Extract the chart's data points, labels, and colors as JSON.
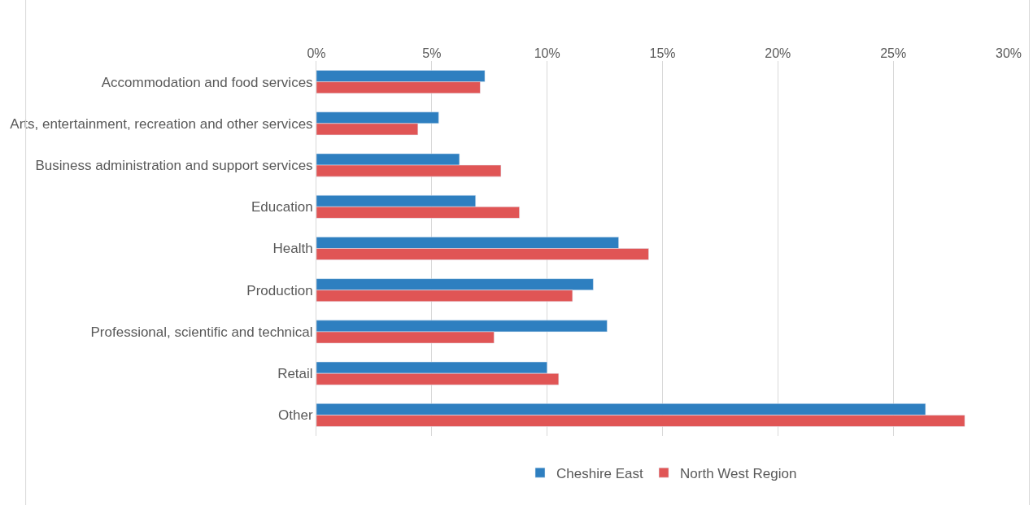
{
  "chart_data": {
    "type": "bar",
    "orientation": "horizontal",
    "categories": [
      "Accommodation and food services",
      "Arts, entertainment, recreation and other services",
      "Business administration and support services",
      "Education",
      "Health",
      "Production",
      "Professional, scientific and technical",
      "Retail",
      "Other"
    ],
    "series": [
      {
        "name": "Cheshire East",
        "color": "#2e7fc0",
        "values": [
          7.3,
          5.3,
          6.2,
          6.9,
          13.1,
          12.0,
          12.6,
          10.0,
          26.4
        ]
      },
      {
        "name": "North West Region",
        "color": "#e05555",
        "values": [
          7.1,
          4.4,
          8.0,
          8.8,
          14.4,
          11.1,
          7.7,
          10.5,
          28.1
        ]
      }
    ],
    "xlim": [
      0,
      30
    ],
    "xticks": [
      {
        "value": 0,
        "label": "0%"
      },
      {
        "value": 5,
        "label": "5%"
      },
      {
        "value": 10,
        "label": "10%"
      },
      {
        "value": 15,
        "label": "15%"
      },
      {
        "value": 20,
        "label": "20%"
      },
      {
        "value": 25,
        "label": "25%"
      },
      {
        "value": 30,
        "label": "30%"
      }
    ],
    "grid": "x",
    "legend": "bottom"
  }
}
